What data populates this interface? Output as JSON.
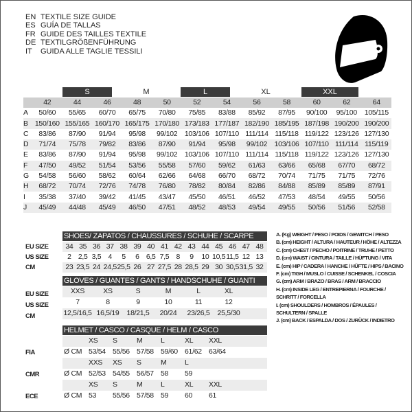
{
  "titles": [
    {
      "lang": "EN",
      "text": "TEXTILE SIZE GUIDE"
    },
    {
      "lang": "ES",
      "text": "GUÍA DE TALLAS"
    },
    {
      "lang": "FR",
      "text": "GUIDE DES TAILLES TEXTILE"
    },
    {
      "lang": "DE",
      "text": "TEXTILGRÖßENFÜHRUNG"
    },
    {
      "lang": "IT",
      "text": "GUIDA ALLE TAGLIE TESSILI"
    }
  ],
  "icon": "helmet-icon",
  "textile": {
    "size_groups": [
      "S",
      "M",
      "L",
      "XL",
      "XXL"
    ],
    "sizes": [
      "42",
      "44",
      "46",
      "48",
      "50",
      "52",
      "54",
      "56",
      "58",
      "60",
      "62",
      "64"
    ],
    "rows": [
      {
        "key": "A",
        "values": [
          "50/60",
          "55/65",
          "60/70",
          "65/75",
          "70/80",
          "75/85",
          "83/88",
          "85/92",
          "87/95",
          "90/100",
          "95/100",
          "105/115"
        ]
      },
      {
        "key": "B",
        "values": [
          "150/160",
          "155/165",
          "160/170",
          "165/175",
          "170/180",
          "173/183",
          "177/187",
          "182/190",
          "185/195",
          "187/198",
          "190/200",
          "190/200"
        ]
      },
      {
        "key": "C",
        "values": [
          "83/86",
          "87/90",
          "91/94",
          "95/98",
          "99/102",
          "103/106",
          "107/110",
          "111/114",
          "115/118",
          "119/122",
          "123/126",
          "127/130"
        ]
      },
      {
        "key": "D",
        "values": [
          "71/74",
          "75/78",
          "79/82",
          "83/86",
          "87/90",
          "91/94",
          "95/98",
          "99/102",
          "103/106",
          "107/110",
          "111/114",
          "115/119"
        ]
      },
      {
        "key": "E",
        "values": [
          "83/86",
          "87/90",
          "91/94",
          "95/98",
          "99/102",
          "103/106",
          "107/110",
          "111/114",
          "115/118",
          "119/122",
          "123/126",
          "127/130"
        ]
      },
      {
        "key": "F",
        "values": [
          "47/50",
          "49/52",
          "51/54",
          "53/56",
          "55/58",
          "57/60",
          "59/62",
          "61/63",
          "63/66",
          "65/68",
          "67/70",
          "68/72"
        ]
      },
      {
        "key": "G",
        "values": [
          "54/58",
          "56/60",
          "58/62",
          "60/64",
          "62/66",
          "64/68",
          "66/70",
          "68/72",
          "70/74",
          "71/75",
          "71/75",
          "72/76"
        ]
      },
      {
        "key": "H",
        "values": [
          "68/72",
          "70/74",
          "72/76",
          "74/78",
          "76/80",
          "78/82",
          "80/84",
          "82/86",
          "84/88",
          "85/89",
          "85/89",
          "87/91"
        ]
      },
      {
        "key": "I",
        "values": [
          "35/38",
          "37/40",
          "39/42",
          "41/45",
          "43/47",
          "45/50",
          "46/51",
          "46/52",
          "47/53",
          "48/54",
          "49/55",
          "50/56"
        ]
      },
      {
        "key": "J",
        "values": [
          "45/49",
          "44/48",
          "45/49",
          "46/50",
          "47/51",
          "48/52",
          "48/53",
          "49/54",
          "49/55",
          "50/56",
          "51/56",
          "52/58"
        ]
      }
    ]
  },
  "shoes": {
    "title": "SHOES/ ZAPATOS / CHAUSSURES / SCHUHE / SCARPE",
    "rows": [
      {
        "label": "EU SIZE",
        "values": [
          "34",
          "35",
          "36",
          "37",
          "38",
          "39",
          "40",
          "41",
          "42",
          "43",
          "44",
          "45",
          "46",
          "47",
          "48"
        ]
      },
      {
        "label": "US SIZE",
        "values": [
          "2",
          "2,5",
          "3,5",
          "4",
          "5",
          "6",
          "6,5",
          "7,5",
          "8",
          "9",
          "10",
          "10,5",
          "11,5",
          "12",
          "13"
        ]
      },
      {
        "label": "CM",
        "values": [
          "23",
          "23,5",
          "24",
          "24,5",
          "25,5",
          "26",
          "27",
          "27,5",
          "28",
          "28,5",
          "29",
          "30",
          "30,5",
          "31,5",
          "32"
        ]
      }
    ]
  },
  "gloves": {
    "title": "GLOVES / GUANTES / GANTS / HANDSCHUHE / GUANTI",
    "rows": [
      {
        "label": "EU SIZE",
        "values": [
          "XXS",
          "XS",
          "S",
          "M",
          "L",
          "XL"
        ]
      },
      {
        "label": "US SIZE",
        "values": [
          "7",
          "8",
          "9",
          "10",
          "11",
          "12"
        ]
      },
      {
        "label": "CM",
        "values": [
          "12,5/16,5",
          "16,5/19",
          "18/21,5",
          "20/24",
          "23/26,5",
          "25,5/30"
        ]
      }
    ]
  },
  "helmet": {
    "title": "HELMET / CASCO / CASQUE / HELM / CASCO",
    "standards": [
      {
        "label": "FIA",
        "unit": "Ø CM",
        "sizes": [
          "XS",
          "S",
          "M",
          "L",
          "XL",
          "XXL"
        ],
        "values": [
          "53/54",
          "55/56",
          "57/58",
          "59/60",
          "61/62",
          "63/64"
        ]
      },
      {
        "label": "CMR",
        "unit": "Ø CM",
        "sizes": [
          "XXS",
          "XS",
          "S",
          "M",
          "L"
        ],
        "values": [
          "52/53",
          "54/55",
          "56/57",
          "58",
          "59"
        ]
      },
      {
        "label": "ECE",
        "unit": "Ø CM",
        "sizes": [
          "XS",
          "S",
          "M",
          "L",
          "XL",
          "XXL"
        ],
        "values": [
          "53",
          "55/56",
          "57/58",
          "59",
          "60",
          "61"
        ]
      }
    ]
  },
  "legend": [
    "A. (Kg) WEIGHT / PESO / POIDS / GEWITCH / PESO",
    "B. (cm) HEIGHT / ALTURA / HAUTEUR / HÖHE / ALTEZZA",
    "C. (cm) CHEST / PECHO / POITRINE / TRUHE / PETTO",
    "D. (cm) WAIST / CINTURA / TAILLE / HÜFTUNG / VITA",
    "E. (cm) HIP / CADERA / HANCHE / HÜFTE / HIPS /  BACINO",
    "F.  (cm) TIGH / MUSLO / CUISSE / SCHENKEL / COSCIA",
    "G. (cm) ARM  / BRAZO / BRAS / ARM / BRACCIO",
    "H. (cm) INSIDE LEG / ENTREPIERNA / FOURCHE /",
    "SCHRITT / FORCELLA",
    "I.  (cm) SHOULDERS / HOMBROS / ÉPAULES /",
    "SCHULTERN / SPALLE",
    "J. (cm) BACK / ESPALDA / DOS / ZURÜCK / INDIETRO"
  ]
}
